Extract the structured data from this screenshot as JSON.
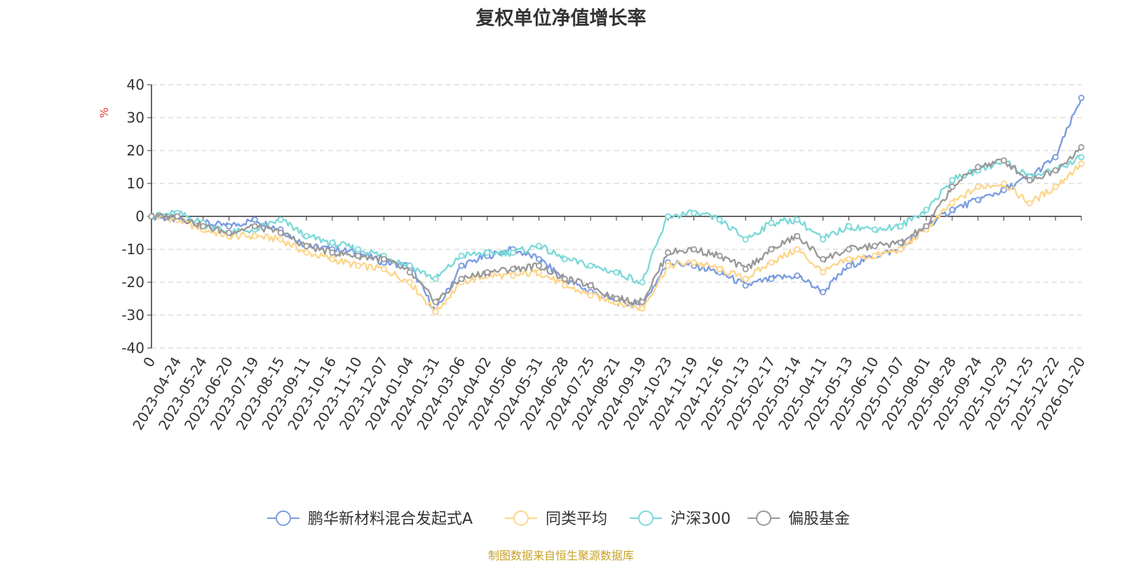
{
  "chart_data": {
    "type": "line",
    "title": "复权单位净值增长率",
    "ylabel": "%",
    "ylim": [
      -40,
      40
    ],
    "yticks": [
      40,
      30,
      20,
      10,
      0,
      -10,
      -20,
      -30,
      -40
    ],
    "x_categories": [
      "0",
      "2023-04-24",
      "2023-05-24",
      "2023-06-20",
      "2023-07-19",
      "2023-08-15",
      "2023-09-11",
      "2023-10-16",
      "2023-11-10",
      "2023-12-07",
      "2024-01-04",
      "2024-01-31",
      "2024-03-06",
      "2024-04-02",
      "2024-05-06",
      "2024-05-31",
      "2024-06-28",
      "2024-07-25",
      "2024-08-21",
      "2024-09-19",
      "2024-10-23",
      "2024-11-19",
      "2024-12-16",
      "2025-01-13",
      "2025-02-17",
      "2025-03-14",
      "2025-04-11",
      "2025-05-13",
      "2025-06-10",
      "2025-07-07",
      "2025-08-01",
      "2025-08-28",
      "2025-09-24",
      "2025-10-29",
      "2025-11-25",
      "2025-12-22",
      "2026-01-20"
    ],
    "grid": true,
    "legend_position": "bottom",
    "series": [
      {
        "name": "鹏华新材料混合发起式A",
        "color": "#7b9ce1",
        "values": [
          0,
          -1,
          -2,
          -3,
          -1,
          -4,
          -9,
          -10,
          -11,
          -14,
          -15,
          -29,
          -15,
          -12,
          -10,
          -13,
          -19,
          -23,
          -26,
          -27,
          -14,
          -15,
          -17,
          -21,
          -19,
          -18,
          -23,
          -15,
          -12,
          -10,
          -3,
          2,
          5,
          8,
          12,
          18,
          36
        ]
      },
      {
        "name": "同类平均",
        "color": "#fdd58a",
        "values": [
          0,
          -1,
          -4,
          -6,
          -6,
          -7,
          -11,
          -13,
          -15,
          -16,
          -20,
          -29,
          -20,
          -18,
          -18,
          -17,
          -21,
          -24,
          -26,
          -28,
          -15,
          -14,
          -16,
          -19,
          -14,
          -10,
          -17,
          -13,
          -12,
          -10,
          -4,
          4,
          9,
          10,
          4,
          9,
          16
        ]
      },
      {
        "name": "沪深300",
        "color": "#7bd9d8",
        "values": [
          0,
          1,
          -2,
          -5,
          -4,
          -1,
          -6,
          -8,
          -10,
          -12,
          -15,
          -19,
          -12,
          -11,
          -11,
          -9,
          -13,
          -15,
          -17,
          -20,
          0,
          1,
          -1,
          -7,
          -2,
          -1,
          -7,
          -3,
          -4,
          -3,
          2,
          11,
          14,
          17,
          12,
          14,
          18
        ]
      },
      {
        "name": "偏股基金",
        "color": "#999999",
        "values": [
          0,
          0,
          -3,
          -5,
          -3,
          -5,
          -9,
          -11,
          -12,
          -13,
          -17,
          -26,
          -19,
          -17,
          -16,
          -15,
          -19,
          -21,
          -25,
          -26,
          -11,
          -10,
          -12,
          -16,
          -10,
          -6,
          -13,
          -10,
          -9,
          -8,
          -3,
          9,
          15,
          17,
          11,
          14,
          21
        ]
      }
    ]
  },
  "source": {
    "text": "制图数据来自恒生聚源数据库",
    "color": "#c9a227"
  }
}
